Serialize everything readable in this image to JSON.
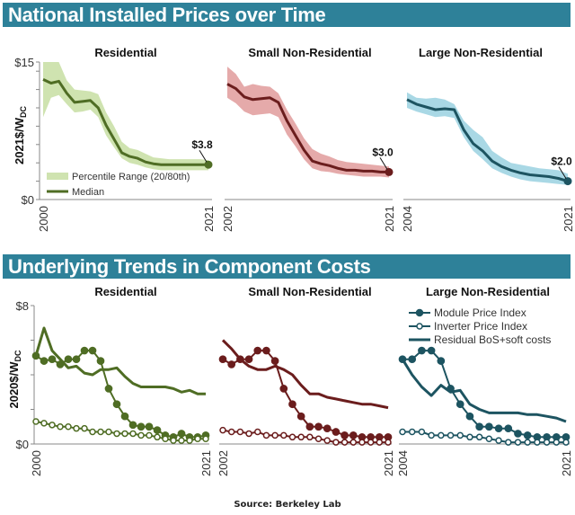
{
  "header_top": "National Installed Prices over Time",
  "header_bottom": "Underlying Trends in Component Costs",
  "source": "Source: Berkeley Lab",
  "chart_data": [
    {
      "type": "area",
      "section": "top",
      "title": "Residential",
      "ylabel": "2021$/W",
      "ylabel_sub": "DC",
      "ylim": [
        0,
        15
      ],
      "ytick_labels": [
        "$15",
        "$0"
      ],
      "yticks": [
        0,
        2,
        4,
        6,
        8,
        10,
        12,
        14,
        15
      ],
      "x": [
        2000,
        2001,
        2002,
        2003,
        2004,
        2005,
        2006,
        2007,
        2008,
        2009,
        2010,
        2011,
        2012,
        2013,
        2014,
        2015,
        2016,
        2017,
        2018,
        2019,
        2020,
        2021
      ],
      "xtick_labels": [
        "2000",
        "2021"
      ],
      "color_line": "#4f6d24",
      "color_band": "#cfe3b0",
      "median": [
        13.1,
        12.7,
        12.9,
        11.6,
        10.6,
        10.7,
        10.8,
        10.0,
        8.1,
        6.6,
        5.1,
        4.7,
        4.5,
        4.1,
        3.9,
        3.8,
        3.8,
        3.8,
        3.8,
        3.8,
        3.8,
        3.8
      ],
      "p20": [
        9.0,
        11.1,
        11.4,
        10.4,
        9.5,
        9.6,
        9.8,
        9.0,
        7.0,
        5.7,
        4.5,
        4.0,
        3.8,
        3.5,
        3.3,
        3.2,
        3.2,
        3.2,
        3.2,
        3.2,
        3.2,
        3.2
      ],
      "p80": [
        15.0,
        15.0,
        15.0,
        13.0,
        12.0,
        11.9,
        11.8,
        11.5,
        9.5,
        8.0,
        6.3,
        5.6,
        5.4,
        5.0,
        4.6,
        4.5,
        4.4,
        4.4,
        4.4,
        4.4,
        4.4,
        4.3
      ],
      "legend": [
        "Percentile Range (20/80th)",
        "Median"
      ],
      "annotation": "$3.8"
    },
    {
      "type": "area",
      "section": "top",
      "title": "Small Non-Residential",
      "ylim": [
        0,
        15
      ],
      "x": [
        2002,
        2003,
        2004,
        2005,
        2006,
        2007,
        2008,
        2009,
        2010,
        2011,
        2012,
        2013,
        2014,
        2015,
        2016,
        2017,
        2018,
        2019,
        2020,
        2021
      ],
      "xtick_labels": [
        "2002",
        "2021"
      ],
      "color_line": "#6b1d1d",
      "color_band": "#e5aaaa",
      "median": [
        12.6,
        12.1,
        11.2,
        10.9,
        11.0,
        11.1,
        10.6,
        8.6,
        7.0,
        5.4,
        4.2,
        3.9,
        3.7,
        3.4,
        3.2,
        3.2,
        3.1,
        3.1,
        3.0,
        3.0
      ],
      "p20": [
        11.1,
        10.5,
        9.6,
        9.2,
        9.3,
        9.4,
        9.0,
        7.1,
        5.8,
        4.4,
        3.4,
        3.1,
        3.0,
        2.8,
        2.7,
        2.6,
        2.5,
        2.5,
        2.5,
        2.4
      ],
      "p80": [
        14.5,
        13.7,
        12.3,
        12.6,
        12.4,
        12.3,
        11.6,
        9.8,
        8.3,
        6.7,
        5.5,
        5.0,
        4.7,
        4.3,
        4.1,
        4.0,
        3.9,
        3.8,
        3.7,
        3.6
      ],
      "annotation": "$3.0"
    },
    {
      "type": "area",
      "section": "top",
      "title": "Large Non-Residential",
      "ylim": [
        0,
        15
      ],
      "x": [
        2004,
        2005,
        2006,
        2007,
        2008,
        2009,
        2010,
        2011,
        2012,
        2013,
        2014,
        2015,
        2016,
        2017,
        2018,
        2019,
        2020,
        2021
      ],
      "xtick_labels": [
        "2004",
        "2021"
      ],
      "color_line": "#1d5461",
      "color_band": "#a9d8e5",
      "median": [
        10.9,
        10.4,
        10.1,
        9.8,
        9.9,
        9.8,
        7.6,
        6.1,
        5.3,
        4.2,
        3.6,
        3.2,
        2.9,
        2.7,
        2.6,
        2.5,
        2.3,
        2.0
      ],
      "p20": [
        10.0,
        9.6,
        9.3,
        9.0,
        9.1,
        8.9,
        6.8,
        5.3,
        4.4,
        3.4,
        2.9,
        2.5,
        2.2,
        2.0,
        1.9,
        1.8,
        1.7,
        1.6
      ],
      "p80": [
        11.7,
        11.1,
        11.0,
        11.1,
        10.9,
        10.4,
        8.6,
        7.6,
        6.8,
        5.3,
        4.6,
        4.0,
        3.8,
        3.6,
        3.4,
        3.3,
        3.2,
        2.8
      ],
      "annotation": "$2.0"
    },
    {
      "type": "line",
      "section": "bottom",
      "title": "Residential",
      "ylabel": "2020$/W",
      "ylabel_sub": "DC",
      "ylim": [
        0,
        8
      ],
      "ytick_labels": [
        "$8",
        "$0"
      ],
      "yticks": [
        0,
        2,
        4,
        6,
        8
      ],
      "x": [
        2000,
        2001,
        2002,
        2003,
        2004,
        2005,
        2006,
        2007,
        2008,
        2009,
        2010,
        2011,
        2012,
        2013,
        2014,
        2015,
        2016,
        2017,
        2018,
        2019,
        2020,
        2021
      ],
      "xtick_labels": [
        "2000",
        "2021"
      ],
      "color": "#4f6d24",
      "series": [
        {
          "name": "Module Price Index",
          "marker": "filled",
          "values": [
            5.1,
            4.8,
            4.9,
            4.6,
            4.9,
            4.9,
            5.4,
            5.4,
            4.8,
            3.2,
            2.3,
            1.6,
            1.1,
            1.0,
            1.0,
            0.8,
            0.5,
            0.4,
            0.6,
            0.4,
            0.4,
            0.5
          ]
        },
        {
          "name": "Inverter Price Index",
          "marker": "open",
          "values": [
            1.3,
            1.2,
            1.1,
            1.0,
            1.0,
            0.9,
            0.9,
            0.7,
            0.7,
            0.7,
            0.6,
            0.6,
            0.6,
            0.5,
            0.5,
            0.4,
            0.3,
            0.2,
            0.2,
            0.2,
            0.3,
            0.3
          ]
        },
        {
          "name": "Residual BoS+soft costs",
          "marker": "none",
          "values": [
            5.1,
            6.7,
            5.4,
            4.9,
            4.4,
            4.5,
            4.1,
            4.0,
            4.3,
            4.3,
            4.4,
            3.9,
            3.5,
            3.3,
            3.3,
            3.3,
            3.3,
            3.2,
            3.0,
            3.1,
            2.9,
            2.9
          ]
        }
      ]
    },
    {
      "type": "line",
      "section": "bottom",
      "title": "Small Non-Residential",
      "ylim": [
        0,
        8
      ],
      "x": [
        2002,
        2003,
        2004,
        2005,
        2006,
        2007,
        2008,
        2009,
        2010,
        2011,
        2012,
        2013,
        2014,
        2015,
        2016,
        2017,
        2018,
        2019,
        2020,
        2021
      ],
      "xtick_labels": [
        "2002",
        "2021"
      ],
      "color": "#6b1d1d",
      "series": [
        {
          "name": "Module Price Index",
          "marker": "filled",
          "values": [
            4.9,
            4.6,
            4.9,
            4.9,
            5.4,
            5.4,
            4.8,
            3.2,
            2.3,
            1.6,
            1.0,
            1.0,
            0.9,
            0.7,
            0.5,
            0.5,
            0.4,
            0.4,
            0.4,
            0.4
          ]
        },
        {
          "name": "Inverter Price Index",
          "marker": "open",
          "values": [
            0.8,
            0.7,
            0.7,
            0.6,
            0.7,
            0.5,
            0.5,
            0.5,
            0.4,
            0.4,
            0.4,
            0.3,
            0.2,
            0.1,
            0.1,
            0.1,
            0.1,
            0.1,
            0.1,
            0.1
          ]
        },
        {
          "name": "Residual BoS+soft costs",
          "marker": "none",
          "values": [
            6.0,
            5.5,
            4.9,
            4.5,
            4.3,
            4.3,
            4.5,
            4.3,
            4.0,
            3.4,
            2.9,
            2.9,
            2.7,
            2.6,
            2.5,
            2.4,
            2.3,
            2.3,
            2.2,
            2.1
          ]
        }
      ]
    },
    {
      "type": "line",
      "section": "bottom",
      "title": "Large Non-Residential",
      "ylim": [
        0,
        8
      ],
      "x": [
        2004,
        2005,
        2006,
        2007,
        2008,
        2009,
        2010,
        2011,
        2012,
        2013,
        2014,
        2015,
        2016,
        2017,
        2018,
        2019,
        2020,
        2021
      ],
      "xtick_labels": [
        "2004",
        "2021"
      ],
      "color": "#1d5461",
      "series": [
        {
          "name": "Module Price Index",
          "marker": "filled",
          "values": [
            4.9,
            4.9,
            5.4,
            5.4,
            4.8,
            3.2,
            2.3,
            1.6,
            1.0,
            1.0,
            0.9,
            0.9,
            0.6,
            0.5,
            0.4,
            0.4,
            0.4,
            0.4
          ]
        },
        {
          "name": "Inverter Price Index",
          "marker": "open",
          "values": [
            0.7,
            0.7,
            0.7,
            0.5,
            0.5,
            0.5,
            0.5,
            0.4,
            0.4,
            0.3,
            0.2,
            0.1,
            0.1,
            0.1,
            0.1,
            0.1,
            0.1,
            0.1
          ]
        },
        {
          "name": "Residual BoS+soft costs",
          "marker": "none",
          "values": [
            4.9,
            4.0,
            3.3,
            2.8,
            3.4,
            3.0,
            3.1,
            2.3,
            2.0,
            1.8,
            1.8,
            1.8,
            1.8,
            1.7,
            1.7,
            1.6,
            1.5,
            1.3
          ]
        }
      ],
      "legend": [
        "Module Price Index",
        "Inverter Price Index",
        "Residual BoS+soft costs"
      ]
    }
  ]
}
